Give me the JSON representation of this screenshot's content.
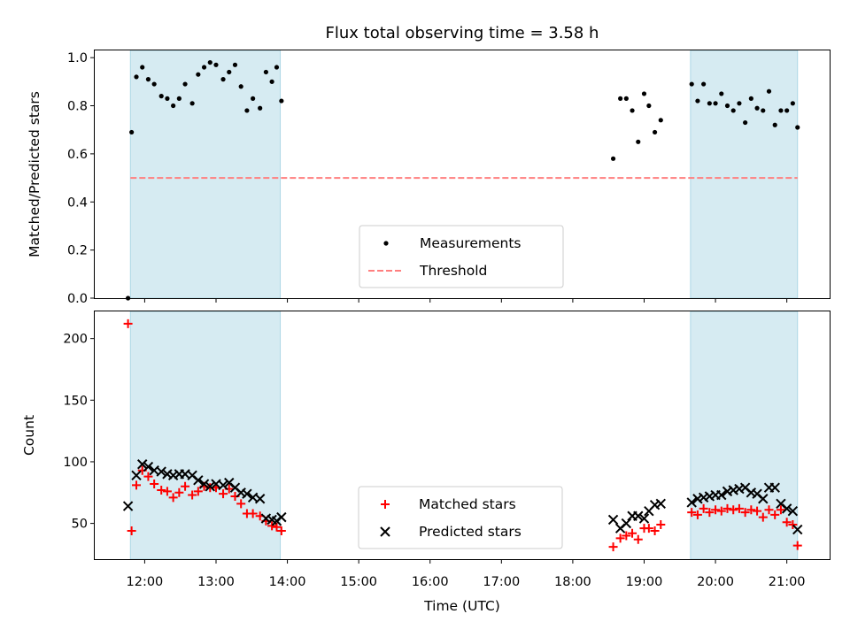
{
  "chart_data": {
    "title": "Flux total observing time = 3.58 h",
    "xlabel": "Time (UTC)",
    "x_unit": "hours UTC",
    "xlim": [
      "11:18",
      "21:36"
    ],
    "x_tick_labels": [
      "12:00",
      "13:00",
      "14:00",
      "15:00",
      "16:00",
      "17:00",
      "18:00",
      "19:00",
      "20:00",
      "21:00"
    ],
    "shaded_intervals": [
      [
        "11:48",
        "13:54"
      ],
      [
        "19:39",
        "21:09"
      ]
    ],
    "shade_color": "#add8e6",
    "panels": [
      {
        "type": "scatter",
        "ylabel": "Matched/Predicted stars",
        "ylim": [
          0.0,
          1.03
        ],
        "y_tick_labels": [
          "0.0",
          "0.2",
          "0.4",
          "0.6",
          "0.8",
          "1.0"
        ],
        "threshold": {
          "name": "Threshold",
          "value": 0.5,
          "color": "#ff7f7f",
          "style": "dashed",
          "x_range": [
            "11:48",
            "21:09"
          ]
        },
        "legend": {
          "placement": "lower center",
          "entries": [
            "Measurements",
            "Threshold"
          ]
        },
        "series": [
          {
            "name": "Measurements",
            "marker": "dot",
            "color": "#000000",
            "points": [
              [
                "11:46",
                0.0
              ],
              [
                "11:49",
                0.69
              ],
              [
                "11:53",
                0.92
              ],
              [
                "11:58",
                0.96
              ],
              [
                "12:03",
                0.91
              ],
              [
                "12:08",
                0.89
              ],
              [
                "12:14",
                0.84
              ],
              [
                "12:19",
                0.83
              ],
              [
                "12:24",
                0.8
              ],
              [
                "12:29",
                0.83
              ],
              [
                "12:34",
                0.89
              ],
              [
                "12:40",
                0.81
              ],
              [
                "12:45",
                0.93
              ],
              [
                "12:50",
                0.96
              ],
              [
                "12:55",
                0.98
              ],
              [
                "13:00",
                0.97
              ],
              [
                "13:06",
                0.91
              ],
              [
                "13:11",
                0.94
              ],
              [
                "13:16",
                0.97
              ],
              [
                "13:21",
                0.88
              ],
              [
                "13:26",
                0.78
              ],
              [
                "13:31",
                0.83
              ],
              [
                "13:37",
                0.79
              ],
              [
                "13:42",
                0.94
              ],
              [
                "13:47",
                0.9
              ],
              [
                "13:51",
                0.96
              ],
              [
                "13:55",
                0.82
              ],
              [
                "18:34",
                0.58
              ],
              [
                "18:40",
                0.83
              ],
              [
                "18:45",
                0.83
              ],
              [
                "18:50",
                0.78
              ],
              [
                "18:55",
                0.65
              ],
              [
                "19:00",
                0.85
              ],
              [
                "19:04",
                0.8
              ],
              [
                "19:09",
                0.69
              ],
              [
                "19:14",
                0.74
              ],
              [
                "19:40",
                0.89
              ],
              [
                "19:45",
                0.82
              ],
              [
                "19:50",
                0.89
              ],
              [
                "19:55",
                0.81
              ],
              [
                "20:00",
                0.81
              ],
              [
                "20:05",
                0.85
              ],
              [
                "20:10",
                0.8
              ],
              [
                "20:15",
                0.78
              ],
              [
                "20:20",
                0.81
              ],
              [
                "20:25",
                0.73
              ],
              [
                "20:30",
                0.83
              ],
              [
                "20:35",
                0.79
              ],
              [
                "20:40",
                0.78
              ],
              [
                "20:45",
                0.86
              ],
              [
                "20:50",
                0.72
              ],
              [
                "20:55",
                0.78
              ],
              [
                "21:00",
                0.78
              ],
              [
                "21:05",
                0.81
              ],
              [
                "21:09",
                0.71
              ]
            ]
          }
        ]
      },
      {
        "type": "scatter",
        "ylabel": "Count",
        "ylim": [
          21,
          222
        ],
        "y_tick_labels": [
          "50",
          "100",
          "150",
          "200"
        ],
        "legend": {
          "placement": "lower center",
          "entries": [
            "Matched stars",
            "Predicted stars"
          ]
        },
        "series": [
          {
            "name": "Matched stars",
            "marker": "plus",
            "color": "#ff0000",
            "points": [
              [
                "11:46",
                212
              ],
              [
                "11:49",
                44
              ],
              [
                "11:53",
                81
              ],
              [
                "11:58",
                93
              ],
              [
                "12:03",
                88
              ],
              [
                "12:08",
                82
              ],
              [
                "12:14",
                77
              ],
              [
                "12:19",
                76
              ],
              [
                "12:24",
                71
              ],
              [
                "12:29",
                75
              ],
              [
                "12:34",
                80
              ],
              [
                "12:40",
                73
              ],
              [
                "12:45",
                76
              ],
              [
                "12:50",
                80
              ],
              [
                "12:55",
                79
              ],
              [
                "13:00",
                79
              ],
              [
                "13:06",
                74
              ],
              [
                "13:11",
                78
              ],
              [
                "13:16",
                72
              ],
              [
                "13:21",
                66
              ],
              [
                "13:26",
                58
              ],
              [
                "13:31",
                58
              ],
              [
                "13:37",
                56
              ],
              [
                "13:42",
                52
              ],
              [
                "13:47",
                48
              ],
              [
                "13:51",
                47
              ],
              [
                "13:55",
                44
              ],
              [
                "18:34",
                31
              ],
              [
                "18:40",
                38
              ],
              [
                "18:45",
                40
              ],
              [
                "18:50",
                42
              ],
              [
                "18:55",
                37
              ],
              [
                "19:00",
                46
              ],
              [
                "19:04",
                46
              ],
              [
                "19:09",
                44
              ],
              [
                "19:14",
                49
              ],
              [
                "19:40",
                59
              ],
              [
                "19:45",
                57
              ],
              [
                "19:50",
                62
              ],
              [
                "19:55",
                59
              ],
              [
                "20:00",
                61
              ],
              [
                "20:05",
                60
              ],
              [
                "20:10",
                62
              ],
              [
                "20:15",
                61
              ],
              [
                "20:20",
                62
              ],
              [
                "20:25",
                59
              ],
              [
                "20:30",
                61
              ],
              [
                "20:35",
                60
              ],
              [
                "20:40",
                55
              ],
              [
                "20:45",
                61
              ],
              [
                "20:50",
                57
              ],
              [
                "20:55",
                61
              ],
              [
                "21:00",
                51
              ],
              [
                "21:05",
                49
              ],
              [
                "21:09",
                32
              ]
            ]
          },
          {
            "name": "Predicted stars",
            "marker": "x",
            "color": "#000000",
            "points": [
              [
                "11:46",
                64
              ],
              [
                "11:53",
                89
              ],
              [
                "11:58",
                98
              ],
              [
                "12:03",
                96
              ],
              [
                "12:08",
                93
              ],
              [
                "12:14",
                92
              ],
              [
                "12:19",
                90
              ],
              [
                "12:24",
                89
              ],
              [
                "12:29",
                90
              ],
              [
                "12:34",
                90
              ],
              [
                "12:40",
                89
              ],
              [
                "12:45",
                85
              ],
              [
                "12:50",
                82
              ],
              [
                "12:55",
                80
              ],
              [
                "13:00",
                82
              ],
              [
                "13:06",
                81
              ],
              [
                "13:11",
                83
              ],
              [
                "13:16",
                79
              ],
              [
                "13:21",
                75
              ],
              [
                "13:26",
                74
              ],
              [
                "13:31",
                71
              ],
              [
                "13:37",
                70
              ],
              [
                "13:42",
                54
              ],
              [
                "13:47",
                53
              ],
              [
                "13:51",
                52
              ],
              [
                "13:55",
                55
              ],
              [
                "18:34",
                53
              ],
              [
                "18:40",
                46
              ],
              [
                "18:45",
                50
              ],
              [
                "18:50",
                56
              ],
              [
                "18:55",
                56
              ],
              [
                "19:00",
                54
              ],
              [
                "19:04",
                60
              ],
              [
                "19:09",
                65
              ],
              [
                "19:14",
                66
              ],
              [
                "19:40",
                67
              ],
              [
                "19:45",
                70
              ],
              [
                "19:50",
                71
              ],
              [
                "19:55",
                72
              ],
              [
                "20:00",
                73
              ],
              [
                "20:05",
                73
              ],
              [
                "20:10",
                76
              ],
              [
                "20:15",
                77
              ],
              [
                "20:20",
                78
              ],
              [
                "20:25",
                79
              ],
              [
                "20:30",
                75
              ],
              [
                "20:35",
                74
              ],
              [
                "20:40",
                70
              ],
              [
                "20:45",
                79
              ],
              [
                "20:50",
                79
              ],
              [
                "20:55",
                66
              ],
              [
                "21:00",
                62
              ],
              [
                "21:05",
                60
              ],
              [
                "21:09",
                45
              ]
            ]
          }
        ]
      }
    ]
  }
}
